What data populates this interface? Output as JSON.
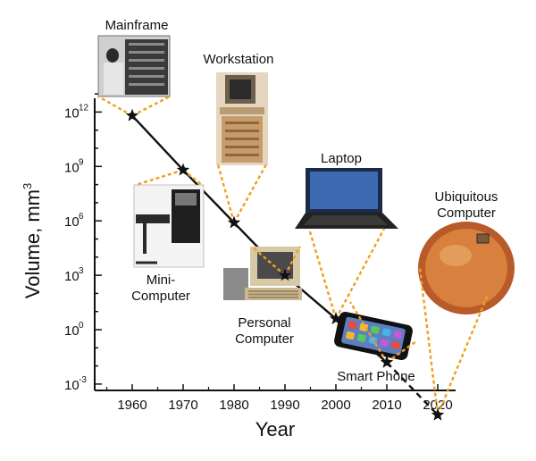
{
  "chart_data": {
    "type": "line",
    "title": "",
    "xlabel": "Year",
    "ylabel": "Volume, mm",
    "ylabel_superscript": "3",
    "xlim": [
      1950,
      2025
    ],
    "ylim_log10": [
      -3,
      13
    ],
    "log_scale_y": true,
    "x_ticks": [
      "1960",
      "1970",
      "1980",
      "1990",
      "2000",
      "2010",
      "2020"
    ],
    "y_ticks": [
      {
        "base": "10",
        "exp": "12"
      },
      {
        "base": "10",
        "exp": "9"
      },
      {
        "base": "10",
        "exp": "6"
      },
      {
        "base": "10",
        "exp": "3"
      },
      {
        "base": "10",
        "exp": "0"
      },
      {
        "base": "10",
        "exp": "-3"
      }
    ],
    "series": [
      {
        "x": [
          1960,
          1970,
          1980,
          1990,
          2000,
          2010,
          2020
        ],
        "log10_volume": [
          11.8,
          8.8,
          5.9,
          3.0,
          0.6,
          -1.8,
          -4.7
        ],
        "solid_until": 2010,
        "dashed_from": 2010
      }
    ],
    "annotations": [
      {
        "x": 1960,
        "label": "Mainframe"
      },
      {
        "x": 1970,
        "label": "Mini-\nComputer"
      },
      {
        "x": 1980,
        "label": "Workstation"
      },
      {
        "x": 1990,
        "label": "Personal\nComputer"
      },
      {
        "x": 2000,
        "label": "Laptop"
      },
      {
        "x": 2010,
        "label": "Smart Phone"
      },
      {
        "x": 2020,
        "label": "Ubiquitous\nComputer"
      }
    ],
    "colors": {
      "line": "#111111",
      "connector": "#f0a020"
    }
  }
}
